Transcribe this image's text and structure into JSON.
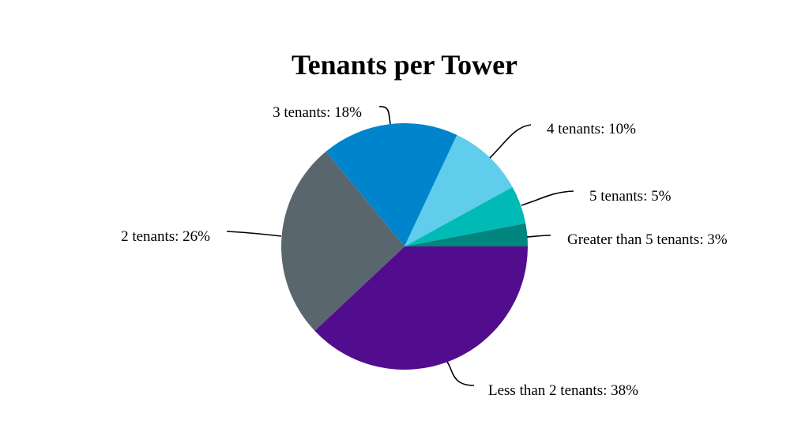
{
  "chart_data": {
    "type": "pie",
    "title": "Tenants per Tower",
    "slices": [
      {
        "label": "Less than 2 tenants",
        "value": 38,
        "display": "Less than 2 tenants: 38%",
        "color": "#520d8f"
      },
      {
        "label": "2 tenants",
        "value": 26,
        "display": "2 tenants: 26%",
        "color": "#5a666e"
      },
      {
        "label": "3 tenants",
        "value": 18,
        "display": "3 tenants: 18%",
        "color": "#0085cc"
      },
      {
        "label": "4 tenants",
        "value": 10,
        "display": "4 tenants: 10%",
        "color": "#5fcdeb"
      },
      {
        "label": "5 tenants",
        "value": 5,
        "display": "5 tenants: 5%",
        "color": "#00bab5"
      },
      {
        "label": "Greater than 5 tenants",
        "value": 3,
        "display": "Greater than 5 tenants: 3%",
        "color": "#00857f"
      }
    ],
    "unit": "%",
    "legend": "none",
    "labels": "outside with leader lines"
  }
}
